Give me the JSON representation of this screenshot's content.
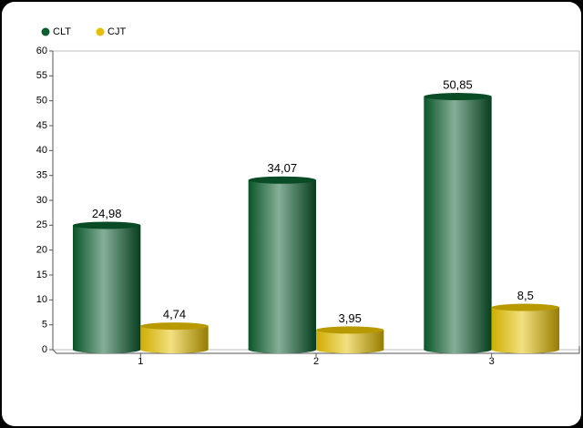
{
  "chart_data": {
    "type": "bar",
    "categories": [
      "1",
      "2",
      "3"
    ],
    "series": [
      {
        "name": "CLT",
        "color": "#0b5e2e",
        "values": [
          24.98,
          34.07,
          50.85
        ],
        "value_labels": [
          "24,98",
          "34,07",
          "50,85"
        ]
      },
      {
        "name": "CJT",
        "color": "#e6c000",
        "values": [
          4.74,
          3.95,
          8.5
        ],
        "value_labels": [
          "4,74",
          "3,95",
          "8,5"
        ]
      }
    ],
    "ylim": [
      0,
      60
    ],
    "yticks": [
      0,
      5,
      10,
      15,
      20,
      25,
      30,
      35,
      40,
      45,
      50,
      55,
      60
    ],
    "legend": "top-left"
  }
}
